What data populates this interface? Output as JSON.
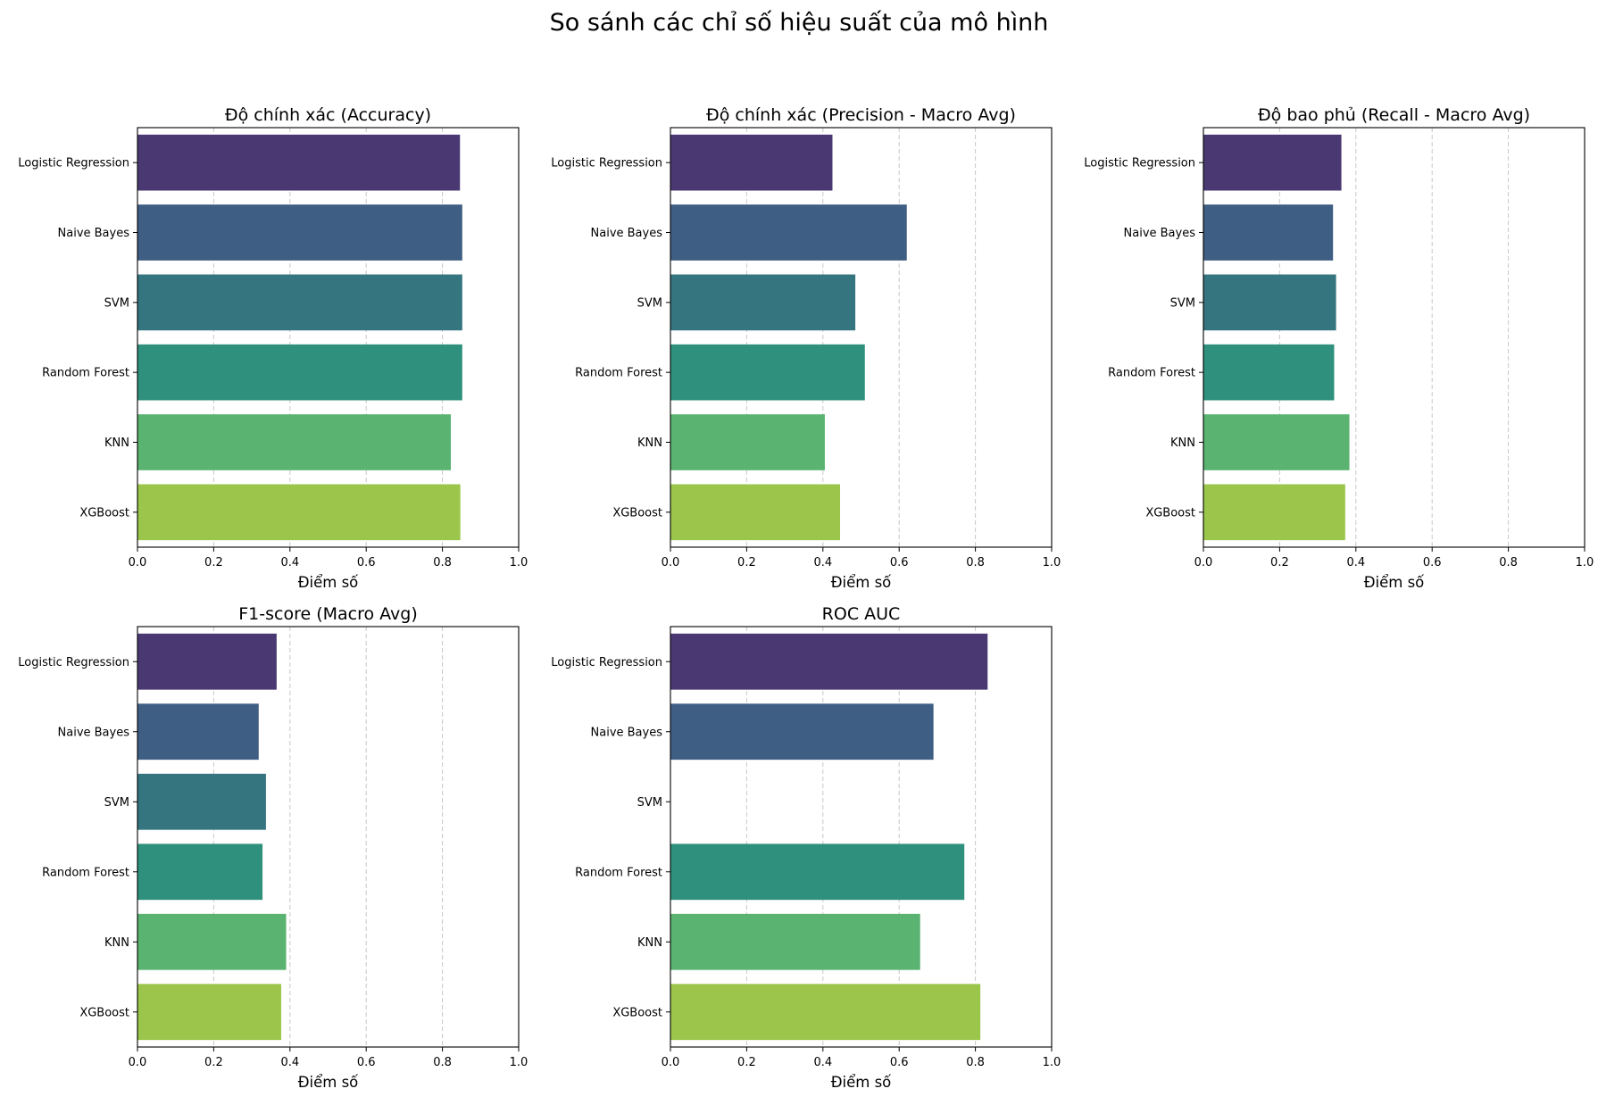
{
  "figure": {
    "title": "So sánh các chỉ số hiệu suất của mô hình"
  },
  "palette": [
    "#4a3873",
    "#3f5e83",
    "#34757f",
    "#2f917d",
    "#5ab371",
    "#9bc64b"
  ],
  "chart_data": [
    {
      "type": "bar",
      "orientation": "horizontal",
      "title": "Độ chính xác (Accuracy)",
      "xlabel": "Điểm số",
      "ylabel": "",
      "xlim": [
        0,
        1
      ],
      "xticks": [
        "0.0",
        "0.2",
        "0.4",
        "0.6",
        "0.8",
        "1.0"
      ],
      "grid": "x, dashed",
      "legend": "none",
      "categories": [
        "Logistic Regression",
        "Naive Bayes",
        "SVM",
        "Random Forest",
        "KNN",
        "XGBoost"
      ],
      "values": [
        0.846,
        0.852,
        0.852,
        0.852,
        0.822,
        0.847
      ]
    },
    {
      "type": "bar",
      "orientation": "horizontal",
      "title": "Độ chính xác (Precision - Macro Avg)",
      "xlabel": "Điểm số",
      "ylabel": "",
      "xlim": [
        0,
        1
      ],
      "xticks": [
        "0.0",
        "0.2",
        "0.4",
        "0.6",
        "0.8",
        "1.0"
      ],
      "grid": "x, dashed",
      "legend": "none",
      "categories": [
        "Logistic Regression",
        "Naive Bayes",
        "SVM",
        "Random Forest",
        "KNN",
        "XGBoost"
      ],
      "values": [
        0.425,
        0.62,
        0.485,
        0.51,
        0.405,
        0.445
      ]
    },
    {
      "type": "bar",
      "orientation": "horizontal",
      "title": "Độ bao phủ (Recall - Macro Avg)",
      "xlabel": "Điểm số",
      "ylabel": "",
      "xlim": [
        0,
        1
      ],
      "xticks": [
        "0.0",
        "0.2",
        "0.4",
        "0.6",
        "0.8",
        "1.0"
      ],
      "grid": "x, dashed",
      "legend": "none",
      "categories": [
        "Logistic Regression",
        "Naive Bayes",
        "SVM",
        "Random Forest",
        "KNN",
        "XGBoost"
      ],
      "values": [
        0.362,
        0.34,
        0.348,
        0.343,
        0.383,
        0.372
      ]
    },
    {
      "type": "bar",
      "orientation": "horizontal",
      "title": "F1-score (Macro Avg)",
      "xlabel": "Điểm số",
      "ylabel": "",
      "xlim": [
        0,
        1
      ],
      "xticks": [
        "0.0",
        "0.2",
        "0.4",
        "0.6",
        "0.8",
        "1.0"
      ],
      "grid": "x, dashed",
      "legend": "none",
      "categories": [
        "Logistic Regression",
        "Naive Bayes",
        "SVM",
        "Random Forest",
        "KNN",
        "XGBoost"
      ],
      "values": [
        0.365,
        0.318,
        0.337,
        0.328,
        0.39,
        0.377
      ]
    },
    {
      "type": "bar",
      "orientation": "horizontal",
      "title": "ROC AUC",
      "xlabel": "Điểm số",
      "ylabel": "",
      "xlim": [
        0,
        1
      ],
      "xticks": [
        "0.0",
        "0.2",
        "0.4",
        "0.6",
        "0.8",
        "1.0"
      ],
      "grid": "x, dashed",
      "legend": "none",
      "categories": [
        "Logistic Regression",
        "Naive Bayes",
        "SVM",
        "Random Forest",
        "KNN",
        "XGBoost"
      ],
      "values": [
        0.832,
        0.69,
        null,
        0.771,
        0.655,
        0.813
      ]
    }
  ]
}
